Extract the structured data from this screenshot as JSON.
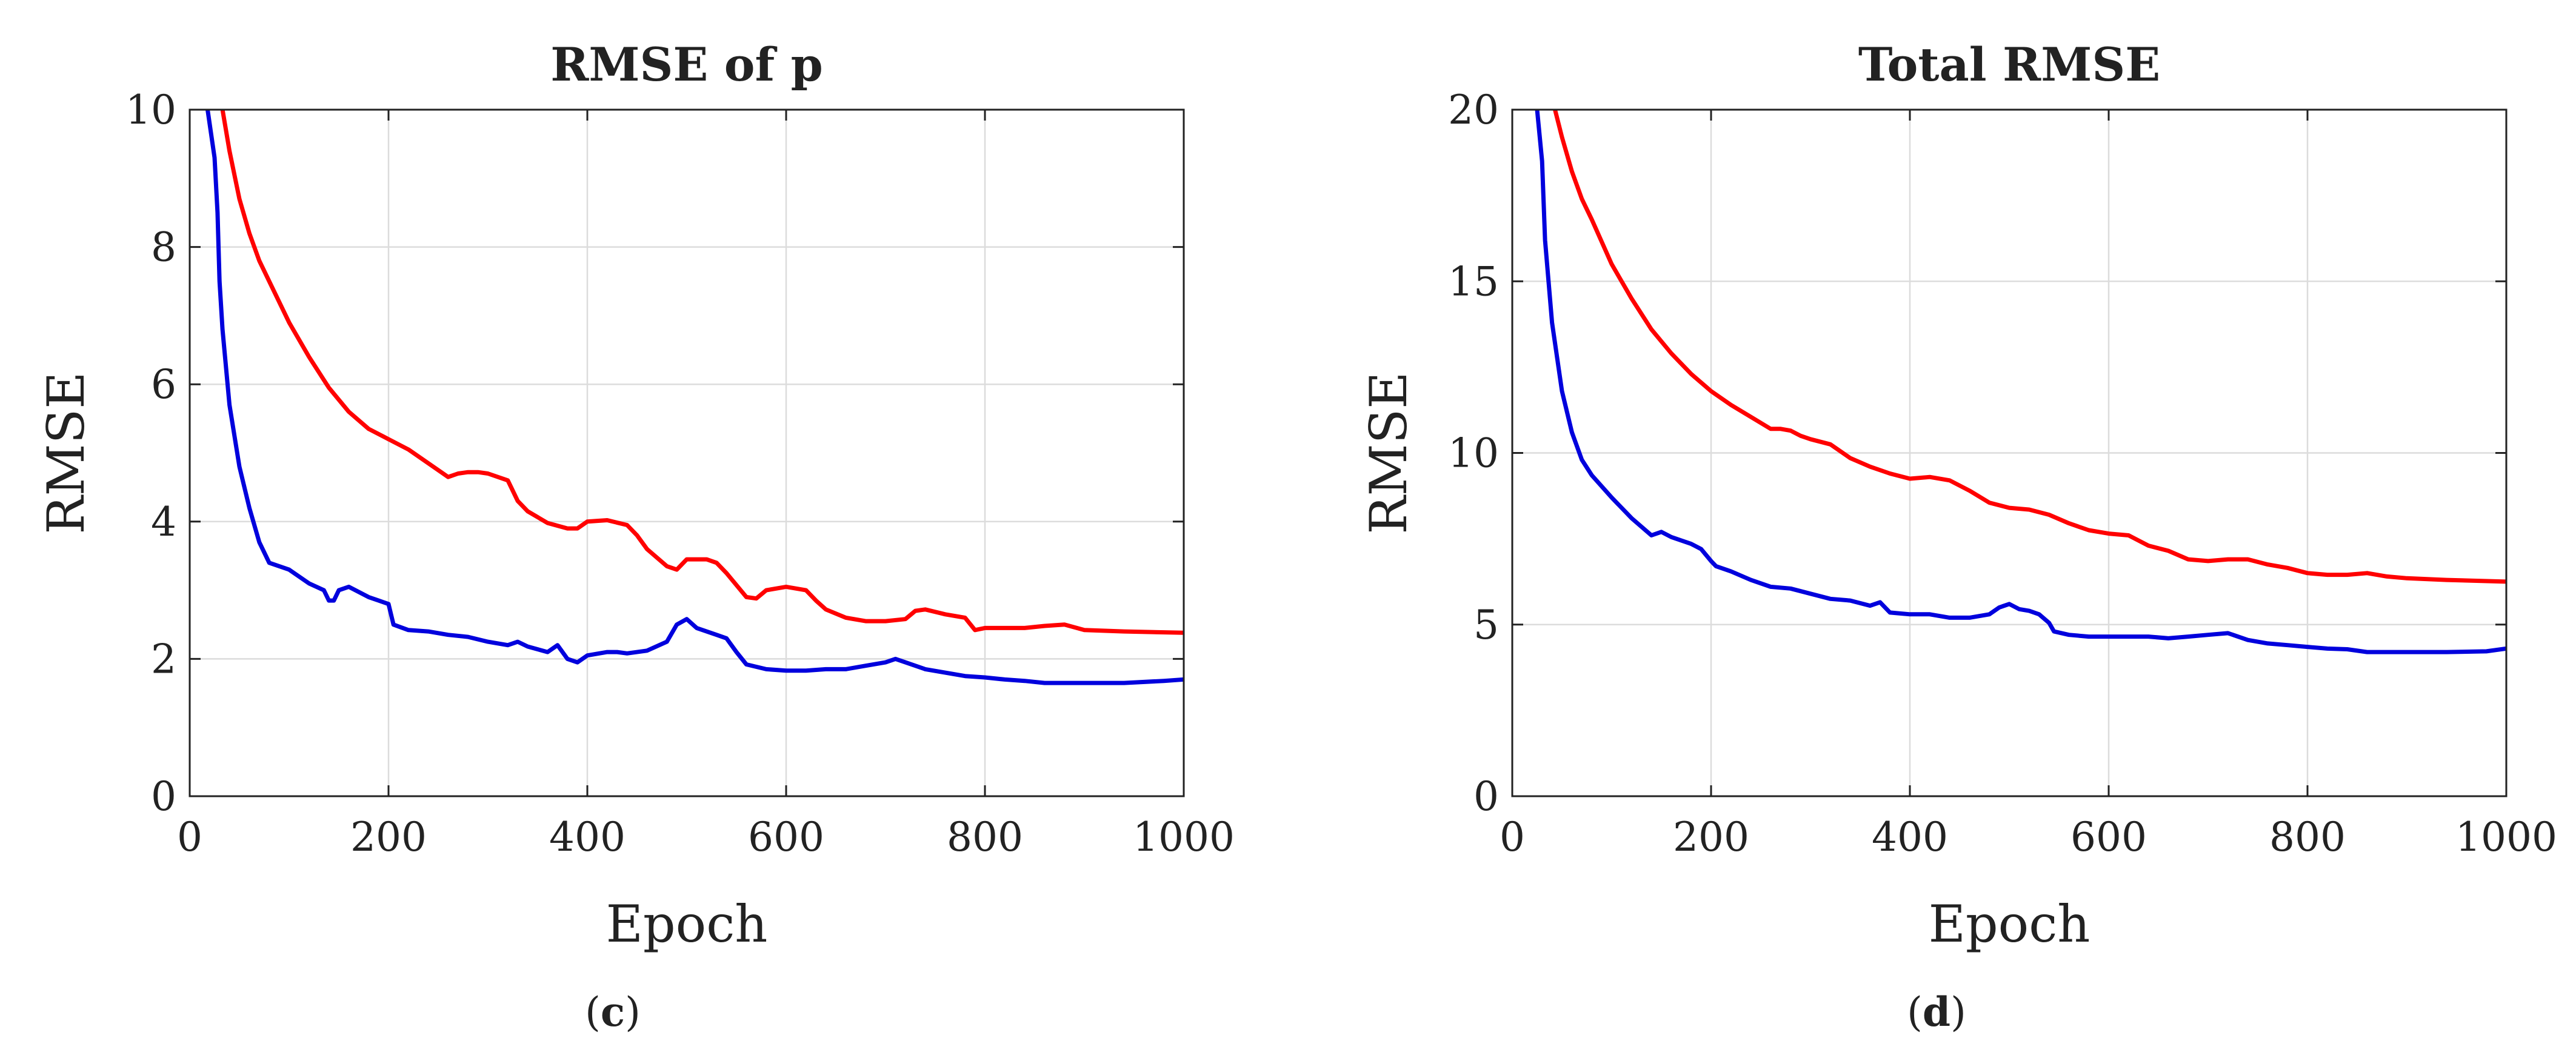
{
  "chart_data": [
    {
      "type": "line",
      "title": "RMSE of p",
      "xlabel": "Epoch",
      "ylabel": "RMSE",
      "xlim": [
        0,
        1000
      ],
      "ylim": [
        0,
        10
      ],
      "xticks": [
        0,
        200,
        400,
        600,
        800,
        1000
      ],
      "yticks": [
        0,
        2,
        4,
        6,
        8,
        10
      ],
      "grid": true,
      "legend": "none",
      "panel_label": {
        "open": "(",
        "letter": "c",
        "close": ")"
      },
      "series": [
        {
          "color": "#ff0000",
          "x": [
            33,
            40,
            50,
            60,
            70,
            80,
            100,
            120,
            140,
            160,
            180,
            200,
            220,
            240,
            260,
            270,
            280,
            290,
            300,
            320,
            330,
            340,
            360,
            380,
            390,
            400,
            420,
            440,
            450,
            460,
            480,
            490,
            500,
            520,
            530,
            540,
            560,
            570,
            580,
            600,
            620,
            630,
            640,
            660,
            680,
            700,
            720,
            730,
            740,
            760,
            780,
            790,
            800,
            820,
            840,
            860,
            880,
            900,
            940,
            1000
          ],
          "y": [
            10,
            9.4,
            8.7,
            8.2,
            7.8,
            7.5,
            6.9,
            6.4,
            5.95,
            5.6,
            5.35,
            5.2,
            5.05,
            4.85,
            4.65,
            4.7,
            4.72,
            4.72,
            4.7,
            4.6,
            4.3,
            4.15,
            3.98,
            3.9,
            3.9,
            4.0,
            4.02,
            3.95,
            3.8,
            3.6,
            3.35,
            3.3,
            3.45,
            3.45,
            3.4,
            3.25,
            2.9,
            2.88,
            3.0,
            3.05,
            3.0,
            2.85,
            2.72,
            2.6,
            2.55,
            2.55,
            2.58,
            2.7,
            2.72,
            2.65,
            2.6,
            2.42,
            2.45,
            2.45,
            2.45,
            2.48,
            2.5,
            2.42,
            2.4,
            2.38
          ]
        },
        {
          "color": "#0000dd",
          "x": [
            18,
            25,
            28,
            30,
            33,
            40,
            50,
            60,
            70,
            80,
            100,
            120,
            135,
            140,
            145,
            150,
            160,
            180,
            190,
            200,
            205,
            220,
            240,
            260,
            280,
            300,
            320,
            330,
            340,
            360,
            370,
            380,
            390,
            400,
            420,
            430,
            440,
            460,
            480,
            490,
            500,
            510,
            520,
            530,
            540,
            550,
            560,
            580,
            600,
            620,
            640,
            660,
            680,
            700,
            710,
            720,
            740,
            760,
            780,
            800,
            820,
            840,
            860,
            880,
            900,
            940,
            980,
            1000
          ],
          "y": [
            10,
            9.3,
            8.5,
            7.5,
            6.8,
            5.7,
            4.8,
            4.2,
            3.7,
            3.4,
            3.3,
            3.1,
            3.0,
            2.85,
            2.85,
            3.0,
            3.05,
            2.9,
            2.85,
            2.8,
            2.5,
            2.42,
            2.4,
            2.35,
            2.32,
            2.25,
            2.2,
            2.25,
            2.18,
            2.1,
            2.2,
            2.0,
            1.95,
            2.05,
            2.1,
            2.1,
            2.08,
            2.12,
            2.25,
            2.5,
            2.58,
            2.45,
            2.4,
            2.35,
            2.3,
            2.1,
            1.92,
            1.85,
            1.83,
            1.83,
            1.85,
            1.85,
            1.9,
            1.95,
            2.0,
            1.95,
            1.85,
            1.8,
            1.75,
            1.73,
            1.7,
            1.68,
            1.65,
            1.65,
            1.65,
            1.65,
            1.68,
            1.7
          ]
        }
      ]
    },
    {
      "type": "line",
      "title": "Total RMSE",
      "xlabel": "Epoch",
      "ylabel": "RMSE",
      "xlim": [
        0,
        1000
      ],
      "ylim": [
        0,
        20
      ],
      "xticks": [
        0,
        200,
        400,
        600,
        800,
        1000
      ],
      "yticks": [
        0,
        5,
        10,
        15,
        20
      ],
      "grid": true,
      "legend": "none",
      "panel_label": {
        "open": "(",
        "letter": "d",
        "close": ")"
      },
      "series": [
        {
          "color": "#ff0000",
          "x": [
            43,
            50,
            60,
            70,
            80,
            100,
            120,
            140,
            160,
            180,
            200,
            220,
            240,
            260,
            270,
            280,
            290,
            300,
            320,
            340,
            360,
            380,
            400,
            420,
            440,
            460,
            480,
            500,
            520,
            540,
            560,
            580,
            600,
            620,
            640,
            660,
            680,
            700,
            720,
            740,
            760,
            780,
            800,
            820,
            840,
            860,
            880,
            900,
            940,
            1000
          ],
          "y": [
            20,
            19.2,
            18.2,
            17.4,
            16.8,
            15.5,
            14.5,
            13.6,
            12.9,
            12.3,
            11.8,
            11.4,
            11.05,
            10.7,
            10.7,
            10.65,
            10.5,
            10.4,
            10.25,
            9.85,
            9.6,
            9.4,
            9.25,
            9.3,
            9.2,
            8.9,
            8.55,
            8.4,
            8.35,
            8.2,
            7.95,
            7.75,
            7.65,
            7.6,
            7.3,
            7.15,
            6.9,
            6.85,
            6.9,
            6.9,
            6.75,
            6.65,
            6.5,
            6.45,
            6.45,
            6.5,
            6.4,
            6.35,
            6.3,
            6.25
          ]
        },
        {
          "color": "#0000dd",
          "x": [
            25,
            30,
            33,
            40,
            50,
            60,
            70,
            80,
            100,
            120,
            140,
            150,
            160,
            180,
            190,
            200,
            205,
            220,
            240,
            260,
            280,
            300,
            320,
            340,
            360,
            370,
            380,
            400,
            420,
            440,
            460,
            480,
            490,
            500,
            510,
            520,
            530,
            540,
            545,
            560,
            580,
            600,
            620,
            640,
            660,
            680,
            700,
            720,
            740,
            760,
            780,
            800,
            820,
            840,
            860,
            880,
            900,
            940,
            980,
            1000
          ],
          "y": [
            20,
            18.5,
            16.2,
            13.8,
            11.8,
            10.6,
            9.8,
            9.35,
            8.7,
            8.1,
            7.6,
            7.7,
            7.55,
            7.35,
            7.2,
            6.85,
            6.7,
            6.55,
            6.3,
            6.1,
            6.05,
            5.9,
            5.75,
            5.7,
            5.55,
            5.65,
            5.35,
            5.3,
            5.3,
            5.2,
            5.2,
            5.3,
            5.5,
            5.6,
            5.45,
            5.4,
            5.3,
            5.05,
            4.8,
            4.7,
            4.65,
            4.65,
            4.65,
            4.65,
            4.6,
            4.65,
            4.7,
            4.75,
            4.55,
            4.45,
            4.4,
            4.35,
            4.3,
            4.28,
            4.2,
            4.2,
            4.2,
            4.2,
            4.22,
            4.3
          ]
        }
      ]
    }
  ]
}
